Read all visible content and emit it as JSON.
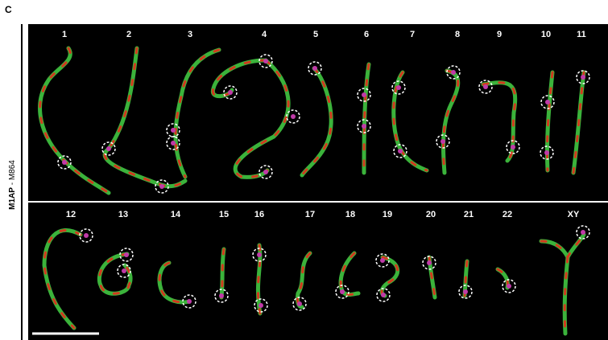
{
  "panel_label": "C",
  "side_label": {
    "bold": "M1AP",
    "rest": " - M864"
  },
  "chromosomes": {
    "row1": [
      "1",
      "2",
      "3",
      "4",
      "5",
      "6",
      "7",
      "8",
      "9",
      "10",
      "11"
    ],
    "row2": [
      "12",
      "13",
      "14",
      "15",
      "16",
      "17",
      "18",
      "19",
      "20",
      "21",
      "22",
      "XY"
    ]
  }
}
